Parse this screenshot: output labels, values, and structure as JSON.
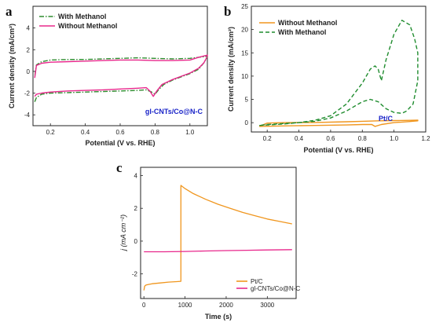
{
  "chart_data": [
    {
      "type": "line",
      "panel": "a",
      "xlabel": "Potential (V vs. RHE)",
      "ylabel": "Current density (mA/cm²)",
      "xlim": [
        0.1,
        1.1
      ],
      "ylim": [
        -5,
        6
      ],
      "xticks": [
        0.2,
        0.4,
        0.6,
        0.8,
        1.0
      ],
      "yticks": [
        -4,
        -2,
        0,
        2,
        4
      ],
      "annotation": "gl-CNTs/Co@N-C",
      "legend_position": "top-left",
      "series": [
        {
          "name": "With Methanol",
          "color": "#2e8b2e",
          "style": "dash-dot",
          "x": [
            0.11,
            0.12,
            0.15,
            0.2,
            0.3,
            0.4,
            0.5,
            0.6,
            0.7,
            0.75,
            0.78,
            0.8,
            0.82,
            0.85,
            0.9,
            0.95,
            1.0,
            1.05,
            1.08,
            1.1,
            1.1,
            1.05,
            1.0,
            0.9,
            0.8,
            0.7,
            0.6,
            0.5,
            0.4,
            0.3,
            0.2,
            0.15,
            0.12,
            0.11
          ],
          "y": [
            -2.8,
            -2.4,
            -2.1,
            -2.0,
            -1.95,
            -1.9,
            -1.85,
            -1.8,
            -1.75,
            -1.7,
            -1.9,
            -2.1,
            -1.7,
            -1.2,
            -0.8,
            -0.5,
            -0.2,
            0.2,
            0.8,
            1.3,
            1.4,
            1.3,
            1.2,
            1.15,
            1.2,
            1.25,
            1.2,
            1.15,
            1.1,
            1.1,
            1.05,
            0.9,
            0.6,
            -0.5
          ]
        },
        {
          "name": "Without Methanol",
          "color": "#e8288c",
          "style": "solid",
          "x": [
            0.11,
            0.12,
            0.15,
            0.2,
            0.3,
            0.4,
            0.5,
            0.6,
            0.7,
            0.75,
            0.77,
            0.79,
            0.81,
            0.84,
            0.9,
            0.95,
            1.0,
            1.05,
            1.08,
            1.1,
            1.1,
            1.05,
            1.0,
            0.9,
            0.8,
            0.7,
            0.6,
            0.5,
            0.4,
            0.3,
            0.2,
            0.15,
            0.12,
            0.11
          ],
          "y": [
            -2.3,
            -2.1,
            -2.0,
            -1.9,
            -1.8,
            -1.75,
            -1.7,
            -1.62,
            -1.55,
            -1.5,
            -1.8,
            -2.3,
            -1.8,
            -1.2,
            -0.75,
            -0.45,
            -0.15,
            0.3,
            0.8,
            1.4,
            1.5,
            1.3,
            1.05,
            1.0,
            1.0,
            1.05,
            1.05,
            1.0,
            0.95,
            0.9,
            0.85,
            0.75,
            0.55,
            -0.6
          ]
        }
      ]
    },
    {
      "type": "line",
      "panel": "b",
      "xlabel": "Potential (V vs. RHE)",
      "ylabel": "Current density (mA/cm²)",
      "xlim": [
        0.1,
        1.2
      ],
      "ylim": [
        -2,
        25
      ],
      "xticks": [
        0.2,
        0.4,
        0.6,
        0.8,
        1.0,
        1.2
      ],
      "yticks": [
        0,
        5,
        10,
        15,
        20,
        25
      ],
      "annotation": "Pt/C",
      "legend_position": "top-left",
      "series": [
        {
          "name": "Without Methanol",
          "color": "#f0961e",
          "style": "solid",
          "x": [
            0.15,
            0.3,
            0.5,
            0.7,
            0.8,
            0.86,
            0.88,
            0.92,
            1.0,
            1.1,
            1.15,
            1.15,
            1.1,
            1.0,
            0.9,
            0.8,
            0.7,
            0.5,
            0.3,
            0.2,
            0.15
          ],
          "y": [
            -0.8,
            -0.7,
            -0.6,
            -0.5,
            -0.4,
            -0.4,
            -0.8,
            -0.4,
            0.0,
            0.25,
            0.4,
            0.55,
            0.5,
            0.45,
            0.4,
            0.3,
            0.2,
            0.05,
            0.0,
            -0.1,
            -0.8
          ]
        },
        {
          "name": "With Methanol",
          "color": "#1f8c2e",
          "style": "dashed",
          "x": [
            0.15,
            0.2,
            0.3,
            0.4,
            0.5,
            0.6,
            0.7,
            0.8,
            0.85,
            0.88,
            0.9,
            0.92,
            0.95,
            1.0,
            1.05,
            1.1,
            1.13,
            1.15,
            1.15,
            1.12,
            1.08,
            1.05,
            1.0,
            0.95,
            0.9,
            0.85,
            0.8,
            0.7,
            0.6,
            0.5,
            0.4,
            0.3,
            0.2,
            0.15
          ],
          "y": [
            -0.6,
            -0.5,
            -0.3,
            0.0,
            0.5,
            1.5,
            4.0,
            8.5,
            11.5,
            12.2,
            11.5,
            9.0,
            13.5,
            19.0,
            22.0,
            21.0,
            18.0,
            15.0,
            9.0,
            4.0,
            2.5,
            2.0,
            2.2,
            3.0,
            4.5,
            5.0,
            4.5,
            2.5,
            1.0,
            0.3,
            0.0,
            -0.2,
            -0.4,
            -0.6
          ]
        }
      ]
    },
    {
      "type": "line",
      "panel": "c",
      "xlabel": "Time (s)",
      "ylabel": "j (mA cm⁻²)",
      "xlim": [
        -80,
        3700
      ],
      "ylim": [
        -3.5,
        4.5
      ],
      "xticks": [
        0,
        1000,
        2000,
        3000
      ],
      "yticks": [
        -2,
        0,
        2,
        4
      ],
      "legend_position": "bottom-right",
      "series": [
        {
          "name": "Pt/C",
          "color": "#f0961e",
          "style": "solid",
          "x": [
            0,
            20,
            50,
            100,
            200,
            400,
            600,
            800,
            900,
            900,
            1000,
            1200,
            1500,
            1800,
            2100,
            2400,
            2700,
            3000,
            3300,
            3600
          ],
          "y": [
            -3.0,
            -2.75,
            -2.68,
            -2.65,
            -2.6,
            -2.55,
            -2.5,
            -2.47,
            -2.45,
            3.4,
            3.2,
            2.9,
            2.55,
            2.25,
            2.0,
            1.75,
            1.55,
            1.35,
            1.2,
            1.05
          ]
        },
        {
          "name": "gl-CNTs/Co@N-C",
          "color": "#e8288c",
          "style": "solid",
          "x": [
            0,
            500,
            1000,
            1500,
            2000,
            2500,
            3000,
            3600
          ],
          "y": [
            -0.65,
            -0.65,
            -0.63,
            -0.6,
            -0.58,
            -0.56,
            -0.54,
            -0.52
          ]
        }
      ]
    }
  ]
}
